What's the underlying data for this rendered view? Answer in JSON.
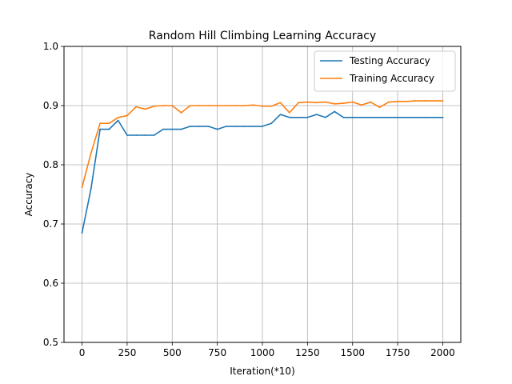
{
  "chart_data": {
    "type": "line",
    "title": "Random Hill Climbing Learning Accuracy",
    "xlabel": "Iteration(*10)",
    "ylabel": "Accuracy",
    "xlim": [
      -100,
      2100
    ],
    "ylim": [
      0.5,
      1.0
    ],
    "xticks": [
      0,
      250,
      500,
      750,
      1000,
      1250,
      1500,
      1750,
      2000
    ],
    "yticks": [
      0.5,
      0.6,
      0.7,
      0.8,
      0.9,
      1.0
    ],
    "xtick_labels": [
      "0",
      "250",
      "500",
      "750",
      "1000",
      "1250",
      "1500",
      "1750",
      "2000"
    ],
    "ytick_labels": [
      "0.5",
      "0.6",
      "0.7",
      "0.8",
      "0.9",
      "1.0"
    ],
    "grid": true,
    "legend_position": "top-right",
    "x": [
      0,
      50,
      100,
      150,
      200,
      250,
      300,
      350,
      400,
      450,
      500,
      550,
      600,
      650,
      700,
      750,
      800,
      850,
      900,
      950,
      1000,
      1050,
      1100,
      1150,
      1200,
      1250,
      1300,
      1350,
      1400,
      1450,
      1500,
      1550,
      1600,
      1650,
      1700,
      1750,
      1800,
      1850,
      1900,
      1950,
      2000
    ],
    "series": [
      {
        "name": "Testing Accuracy",
        "color": "#1f77b4",
        "values": [
          0.685,
          0.76,
          0.86,
          0.86,
          0.875,
          0.85,
          0.85,
          0.85,
          0.85,
          0.86,
          0.86,
          0.86,
          0.865,
          0.865,
          0.865,
          0.86,
          0.865,
          0.865,
          0.865,
          0.865,
          0.865,
          0.87,
          0.885,
          0.88,
          0.88,
          0.88,
          0.885,
          0.88,
          0.89,
          0.88,
          0.88,
          0.88,
          0.88,
          0.88,
          0.88,
          0.88,
          0.88,
          0.88,
          0.88,
          0.88,
          0.88
        ]
      },
      {
        "name": "Training Accuracy",
        "color": "#ff7f0e",
        "values": [
          0.762,
          0.82,
          0.87,
          0.87,
          0.88,
          0.883,
          0.898,
          0.894,
          0.899,
          0.9,
          0.9,
          0.888,
          0.9,
          0.9,
          0.9,
          0.9,
          0.9,
          0.9,
          0.9,
          0.901,
          0.899,
          0.899,
          0.905,
          0.888,
          0.905,
          0.906,
          0.905,
          0.906,
          0.903,
          0.904,
          0.906,
          0.901,
          0.906,
          0.897,
          0.906,
          0.907,
          0.907,
          0.908,
          0.908,
          0.908,
          0.908
        ]
      }
    ]
  }
}
